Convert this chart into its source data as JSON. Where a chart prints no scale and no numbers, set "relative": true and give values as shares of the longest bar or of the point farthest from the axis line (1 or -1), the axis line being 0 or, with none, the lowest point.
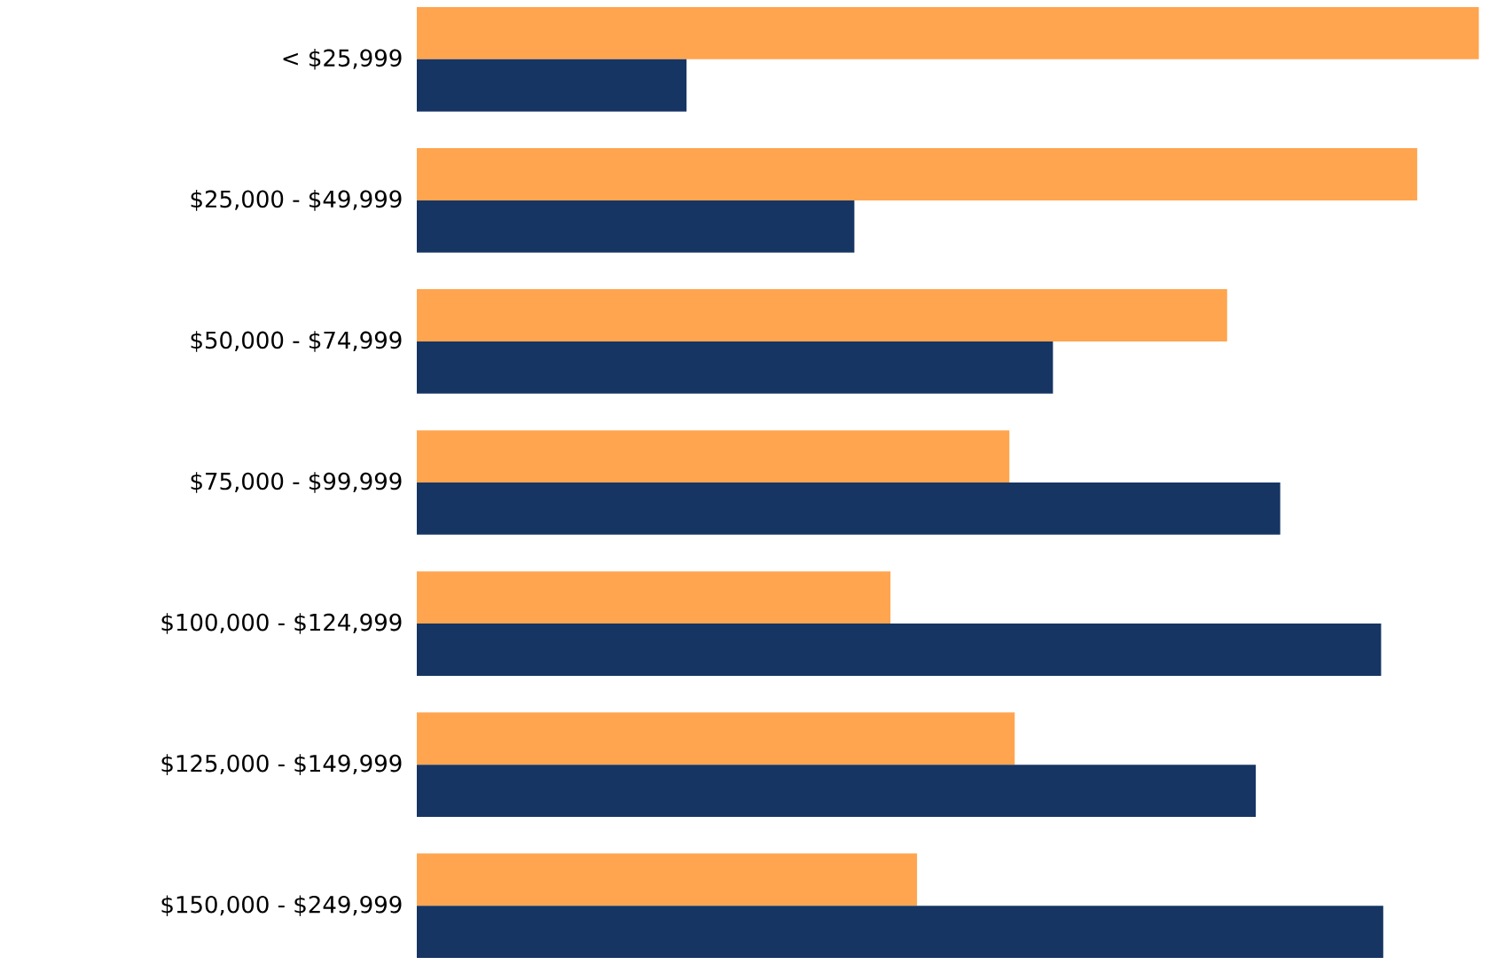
{
  "chart_data": {
    "type": "bar",
    "orientation": "horizontal",
    "relative": true,
    "categories": [
      "< $25,999",
      "$25,000 - $49,999",
      "$50,000 - $74,999",
      "$75,000 - $99,999",
      "$100,000 - $124,999",
      "$125,000 - $149,999",
      "$150,000 - $249,999"
    ],
    "series": [
      {
        "color": "#ffa54f",
        "values": [
          1,
          0.942,
          0.763,
          0.558,
          0.446,
          0.563,
          0.471
        ]
      },
      {
        "color": "#163563",
        "values": [
          0.254,
          0.412,
          0.599,
          0.813,
          0.908,
          0.79,
          0.91
        ]
      }
    ]
  }
}
